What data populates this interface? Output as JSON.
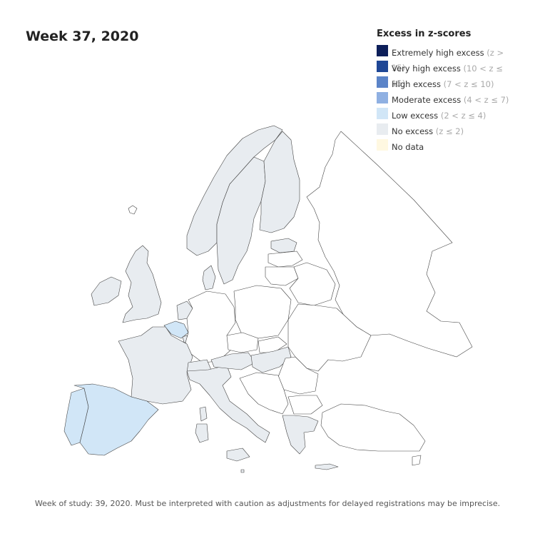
{
  "map": {
    "title": "Week 37, 2020",
    "footnote": "Week of study: 39, 2020. Must be interpreted with caution as adjustments for delayed registrations may be imprecise.",
    "legend": {
      "title": "Excess in z-scores",
      "items": [
        {
          "label": "Extremely high excess",
          "range": "(z > 15)",
          "color": "#0d1f5a"
        },
        {
          "label": "Very high excess",
          "range": "(10 < z ≤ 15)",
          "color": "#1f4796"
        },
        {
          "label": "High excess",
          "range": "(7 < z ≤ 10)",
          "color": "#5b84c8"
        },
        {
          "label": "Moderate excess",
          "range": "(4 < z ≤ 7)",
          "color": "#8fb0e2"
        },
        {
          "label": "Low excess",
          "range": "(2 < z ≤ 4)",
          "color": "#d1e6f7"
        },
        {
          "label": "No excess",
          "range": "(z ≤ 2)",
          "color": "#e8ecf0"
        },
        {
          "label": "No data",
          "range": "",
          "color": "#fff8e1"
        }
      ]
    },
    "regions": [
      {
        "name": "Portugal",
        "status": "Low excess",
        "color": "#d1e6f7"
      },
      {
        "name": "Spain",
        "status": "Low excess",
        "color": "#d1e6f7"
      },
      {
        "name": "Belgium",
        "status": "Low excess",
        "color": "#d1e6f7"
      },
      {
        "name": "France",
        "status": "No excess",
        "color": "#e8ecf0"
      },
      {
        "name": "Italy",
        "status": "No excess",
        "color": "#e8ecf0"
      },
      {
        "name": "United Kingdom",
        "status": "No excess",
        "color": "#e8ecf0"
      },
      {
        "name": "Ireland",
        "status": "No excess",
        "color": "#e8ecf0"
      },
      {
        "name": "Norway",
        "status": "No excess",
        "color": "#e8ecf0"
      },
      {
        "name": "Sweden",
        "status": "No excess",
        "color": "#e8ecf0"
      },
      {
        "name": "Finland",
        "status": "No excess",
        "color": "#e8ecf0"
      },
      {
        "name": "Denmark",
        "status": "No excess",
        "color": "#e8ecf0"
      },
      {
        "name": "Netherlands",
        "status": "No excess",
        "color": "#e8ecf0"
      },
      {
        "name": "Switzerland",
        "status": "No excess",
        "color": "#e8ecf0"
      },
      {
        "name": "Austria",
        "status": "No excess",
        "color": "#e8ecf0"
      },
      {
        "name": "Hungary",
        "status": "No excess",
        "color": "#e8ecf0"
      },
      {
        "name": "Greece",
        "status": "No excess",
        "color": "#e8ecf0"
      },
      {
        "name": "Estonia",
        "status": "No excess",
        "color": "#e8ecf0"
      },
      {
        "name": "Luxembourg",
        "status": "No excess",
        "color": "#e8ecf0"
      },
      {
        "name": "Malta",
        "status": "No excess",
        "color": "#e8ecf0"
      },
      {
        "name": "Iceland",
        "status": "No data",
        "color": "#ffffff"
      },
      {
        "name": "Germany",
        "status": "No data",
        "color": "#ffffff"
      },
      {
        "name": "Poland",
        "status": "No data",
        "color": "#ffffff"
      },
      {
        "name": "Belarus",
        "status": "No data",
        "color": "#ffffff"
      },
      {
        "name": "Ukraine",
        "status": "No data",
        "color": "#ffffff"
      },
      {
        "name": "Russia",
        "status": "No data",
        "color": "#ffffff"
      },
      {
        "name": "Romania",
        "status": "No data",
        "color": "#ffffff"
      },
      {
        "name": "Bulgaria",
        "status": "No data",
        "color": "#ffffff"
      },
      {
        "name": "Turkey",
        "status": "No data",
        "color": "#ffffff"
      },
      {
        "name": "Balkans",
        "status": "No data",
        "color": "#ffffff"
      },
      {
        "name": "Czechia",
        "status": "No data",
        "color": "#ffffff"
      },
      {
        "name": "Slovakia",
        "status": "No data",
        "color": "#ffffff"
      },
      {
        "name": "Latvia",
        "status": "No data",
        "color": "#ffffff"
      },
      {
        "name": "Lithuania",
        "status": "No data",
        "color": "#ffffff"
      },
      {
        "name": "Corsica",
        "status": "No excess",
        "color": "#e8ecf0"
      },
      {
        "name": "Sardinia",
        "status": "No excess",
        "color": "#e8ecf0"
      },
      {
        "name": "Sicily",
        "status": "No excess",
        "color": "#e8ecf0"
      },
      {
        "name": "Crete",
        "status": "No excess",
        "color": "#e8ecf0"
      },
      {
        "name": "Cyprus",
        "status": "No data",
        "color": "#ffffff"
      }
    ]
  }
}
